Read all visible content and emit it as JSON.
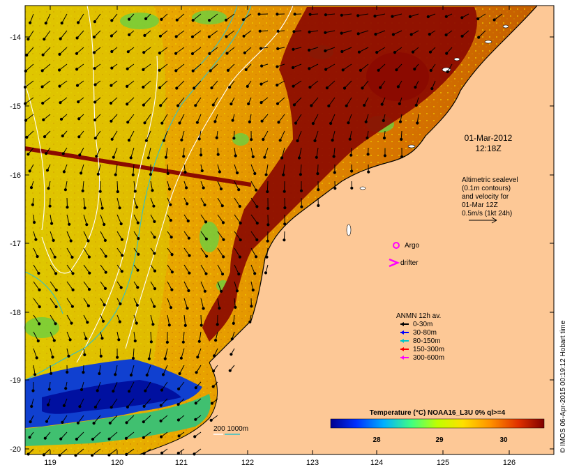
{
  "map": {
    "lat_ticks": [
      "-14",
      "-15",
      "-16",
      "-17",
      "-18",
      "-19",
      "-20"
    ],
    "lon_ticks": [
      "119",
      "120",
      "121",
      "122",
      "123",
      "124",
      "125",
      "126"
    ],
    "timestamp_line1": "01-Mar-2012",
    "timestamp_line2": "12:18Z",
    "altimetry_note": [
      "Altimetric sealevel",
      "(0.1m contours)",
      "and velocity for",
      "01-Mar 12Z",
      "0.5m/s (1kt 24h)"
    ],
    "argo_label": "Argo",
    "drifter_label": "drifter",
    "mooring_legend": {
      "title": "ANMN 12h av.",
      "items": [
        {
          "label": "0-30m",
          "color": "#000000"
        },
        {
          "label": "30-80m",
          "color": "#0000ff"
        },
        {
          "label": "80-150m",
          "color": "#00c8c8"
        },
        {
          "label": "150-300m",
          "color": "#ff0000"
        },
        {
          "label": "300-600m",
          "color": "#ff00ff"
        }
      ]
    },
    "depth_scale_label": "200  1000m",
    "colorbar": {
      "title": "Temperature (°C) NOAA16_L3U 0% ql>=4",
      "ticks": [
        "28",
        "29",
        "30"
      ]
    },
    "credit": "© IMOS 06-Apr-2015 00:19:12 Hobart time",
    "colors": {
      "land": "#fdc896",
      "warm": "#8b0a00",
      "mid": "#e8a000",
      "cool": "#0030c0",
      "argo": "#ff00ff"
    }
  }
}
